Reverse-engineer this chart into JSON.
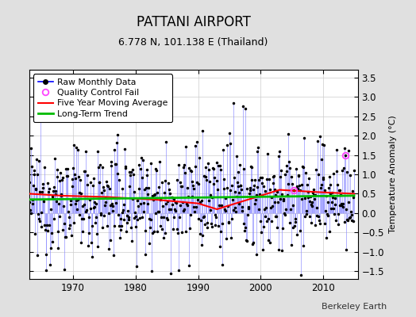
{
  "title": "PATTANI AIRPORT",
  "subtitle": "6.778 N, 101.138 E (Thailand)",
  "ylabel": "Temperature Anomaly (°C)",
  "credit": "Berkeley Earth",
  "ylim": [
    -1.7,
    3.7
  ],
  "xlim": [
    1963,
    2015.5
  ],
  "yticks": [
    -1.5,
    -1.0,
    -0.5,
    0.0,
    0.5,
    1.0,
    1.5,
    2.0,
    2.5,
    3.0,
    3.5
  ],
  "xticks": [
    1970,
    1980,
    1990,
    2000,
    2010
  ],
  "background_color": "#e0e0e0",
  "plot_bg_color": "#ffffff",
  "stem_color": "#8888ff",
  "dot_color": "#000000",
  "ma_color": "#ff0000",
  "trend_color": "#00bb00",
  "qc_color": "#ff44ff",
  "legend_line_color": "#0000ff",
  "seed": 12345,
  "start_year": 1963,
  "end_year": 2015
}
